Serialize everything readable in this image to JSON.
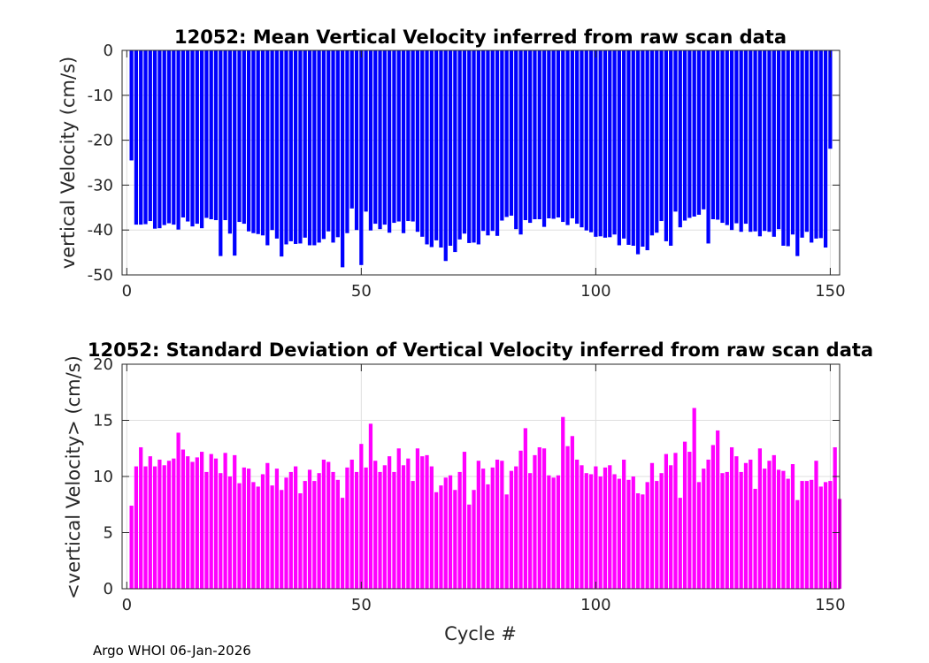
{
  "footer": "Argo WHOI 06-Jan-2026",
  "chart_data": [
    {
      "type": "bar",
      "title": "12052: Mean Vertical Velocity inferred from raw scan data",
      "xlabel": "",
      "ylabel": "vertical Velocity (cm/s)",
      "xlim": [
        -1,
        152
      ],
      "ylim": [
        -50,
        0
      ],
      "xticks": [
        0,
        50,
        100,
        150
      ],
      "yticks": [
        0,
        -10,
        -20,
        -30,
        -40,
        -50
      ],
      "grid": true,
      "color": "#0000ff",
      "x_start": 1,
      "values": [
        -24.5,
        -38.8,
        -38.8,
        -38.7,
        -38.0,
        -39.7,
        -39.6,
        -38.9,
        -38.5,
        -38.8,
        -39.9,
        -37.2,
        -38.1,
        -39.2,
        -38.6,
        -39.6,
        -37.3,
        -37.6,
        -37.8,
        -45.8,
        -37.8,
        -40.8,
        -45.7,
        -38.2,
        -38.6,
        -40.3,
        -40.7,
        -40.9,
        -41.2,
        -43.4,
        -40.0,
        -41.9,
        -45.9,
        -43.2,
        -42.5,
        -43.1,
        -43.0,
        -41.7,
        -43.4,
        -43.4,
        -42.8,
        -42.0,
        -40.3,
        -42.8,
        -41.6,
        -48.3,
        -40.7,
        -35.2,
        -40.0,
        -47.8,
        -35.9,
        -40.1,
        -38.6,
        -39.8,
        -38.8,
        -40.6,
        -38.4,
        -38.1,
        -40.7,
        -38.0,
        -38.1,
        -40.4,
        -41.5,
        -43.2,
        -43.8,
        -42.3,
        -43.9,
        -46.9,
        -43.5,
        -44.9,
        -42.1,
        -40.8,
        -42.9,
        -42.8,
        -43.2,
        -40.2,
        -41.2,
        -40.2,
        -41.3,
        -37.9,
        -37.1,
        -36.8,
        -39.8,
        -41.0,
        -37.8,
        -38.4,
        -37.6,
        -37.6,
        -39.3,
        -37.4,
        -37.5,
        -37.2,
        -38.2,
        -38.9,
        -37.4,
        -38.6,
        -39.4,
        -40.1,
        -40.5,
        -41.5,
        -41.4,
        -41.7,
        -41.6,
        -41.0,
        -43.4,
        -41.9,
        -43.3,
        -43.5,
        -45.4,
        -43.7,
        -44.5,
        -41.2,
        -40.6,
        -38.0,
        -42.5,
        -43.5,
        -35.9,
        -39.4,
        -37.9,
        -37.3,
        -37.0,
        -36.6,
        -35.4,
        -43.0,
        -37.6,
        -37.7,
        -38.4,
        -38.9,
        -40.0,
        -38.5,
        -40.4,
        -38.6,
        -40.4,
        -40.3,
        -41.4,
        -40.2,
        -40.4,
        -41.5,
        -39.8,
        -43.5,
        -43.6,
        -41.0,
        -45.8,
        -41.7,
        -40.4,
        -42.8,
        -41.9,
        -41.8,
        -43.9,
        -21.9
      ]
    },
    {
      "type": "bar",
      "title": "12052: Standard Deviation of Vertical Velocity inferred from raw scan data",
      "xlabel": "Cycle #",
      "ylabel": "<vertical Velocity> (cm/s)",
      "xlim": [
        -1,
        152
      ],
      "ylim": [
        0,
        20
      ],
      "xticks": [
        0,
        50,
        100,
        150
      ],
      "yticks": [
        0,
        5,
        10,
        15,
        20
      ],
      "grid": true,
      "color": "#ff00ff",
      "x_start": 1,
      "values": [
        7.4,
        10.9,
        12.6,
        10.9,
        11.8,
        10.9,
        11.5,
        11.0,
        11.4,
        11.6,
        13.9,
        12.4,
        11.8,
        11.3,
        11.7,
        12.2,
        10.4,
        12.0,
        11.6,
        10.3,
        12.1,
        10.0,
        11.9,
        9.4,
        10.8,
        10.7,
        9.5,
        9.1,
        10.2,
        11.2,
        9.2,
        10.7,
        8.8,
        9.9,
        10.4,
        10.9,
        8.5,
        9.6,
        10.6,
        9.6,
        10.3,
        11.5,
        11.3,
        10.4,
        9.7,
        8.1,
        10.8,
        11.5,
        10.4,
        12.9,
        10.8,
        14.7,
        11.4,
        10.4,
        11.0,
        11.8,
        10.4,
        12.5,
        11.0,
        11.6,
        9.6,
        12.5,
        11.8,
        11.9,
        10.9,
        8.6,
        9.2,
        9.9,
        10.1,
        8.8,
        10.4,
        12.2,
        7.5,
        8.8,
        11.4,
        10.7,
        9.3,
        10.8,
        11.5,
        11.4,
        8.4,
        10.5,
        10.9,
        12.3,
        14.3,
        10.3,
        11.9,
        12.6,
        12.5,
        10.1,
        9.9,
        10.1,
        15.3,
        12.7,
        13.6,
        11.5,
        11.0,
        10.3,
        10.2,
        10.9,
        10.0,
        10.8,
        11.0,
        10.2,
        9.8,
        11.5,
        9.7,
        10.0,
        8.5,
        8.4,
        9.5,
        11.2,
        9.6,
        10.3,
        12.0,
        11.0,
        12.1,
        8.1,
        13.1,
        12.2,
        16.1,
        9.5,
        10.7,
        11.5,
        12.8,
        14.1,
        10.3,
        10.4,
        12.6,
        11.8,
        10.4,
        11.2,
        11.5,
        8.9,
        12.5,
        10.7,
        11.4,
        11.9,
        10.6,
        10.5,
        9.8,
        11.1,
        7.9,
        9.6,
        9.6,
        9.7,
        11.4,
        9.1,
        9.5,
        9.6,
        12.6,
        8.0
      ]
    }
  ]
}
